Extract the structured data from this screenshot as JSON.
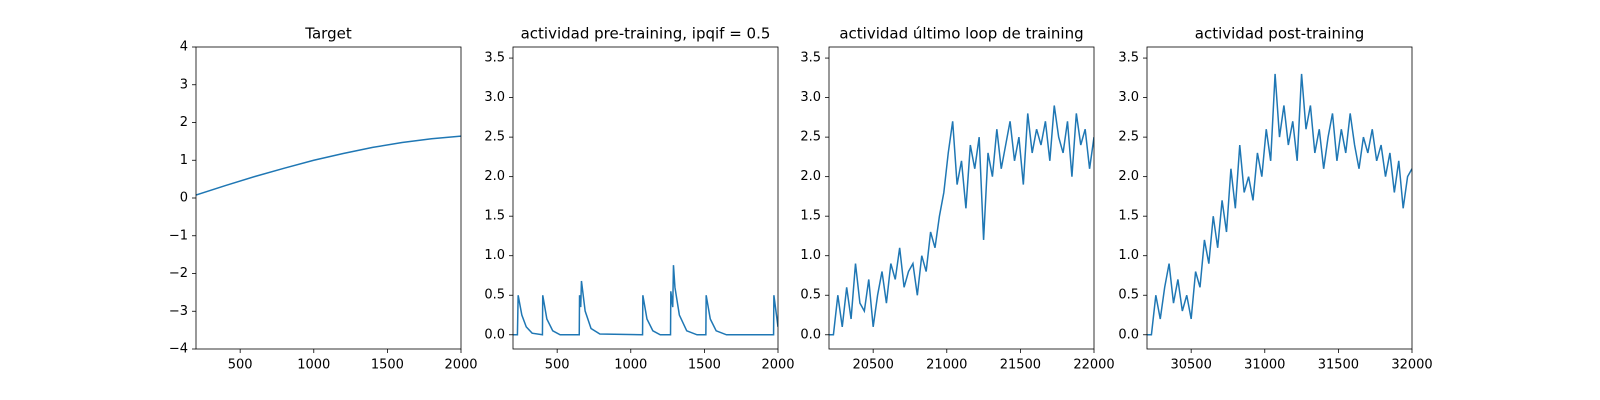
{
  "chart_data": [
    {
      "type": "line",
      "title": "Target",
      "color": "#1f77b4",
      "x": [
        200,
        400,
        600,
        800,
        1000,
        1200,
        1400,
        1600,
        1800,
        2000
      ],
      "values": [
        0.08,
        0.33,
        0.57,
        0.79,
        1.0,
        1.18,
        1.34,
        1.47,
        1.57,
        1.64
      ],
      "xlim": [
        200,
        2000
      ],
      "xticks": [
        500,
        1000,
        1500,
        2000
      ],
      "ylim": [
        -4,
        4
      ],
      "yticks": [
        {
          "value": -4,
          "label": "−4"
        },
        {
          "value": -3,
          "label": "−3"
        },
        {
          "value": -2,
          "label": "−2"
        },
        {
          "value": -1,
          "label": "−1"
        },
        0,
        1,
        2,
        3,
        4
      ]
    },
    {
      "type": "line",
      "title": "actividad pre-training, ipqif = 0.5",
      "color": "#1f77b4",
      "x": [
        200,
        230,
        235,
        260,
        290,
        330,
        400,
        402,
        430,
        470,
        520,
        650,
        652,
        660,
        665,
        690,
        730,
        790,
        1080,
        1082,
        1110,
        1150,
        1200,
        1270,
        1272,
        1285,
        1290,
        1300,
        1330,
        1380,
        1450,
        1510,
        1512,
        1540,
        1580,
        1650,
        1970,
        1972,
        2000
      ],
      "values": [
        0,
        0,
        0.5,
        0.25,
        0.1,
        0.02,
        0,
        0.5,
        0.2,
        0.05,
        0,
        0,
        0.5,
        0.35,
        0.68,
        0.3,
        0.08,
        0.01,
        0,
        0.5,
        0.2,
        0.05,
        0,
        0,
        0.55,
        0.35,
        0.88,
        0.6,
        0.25,
        0.05,
        0,
        0,
        0.5,
        0.2,
        0.05,
        0,
        0,
        0.5,
        0.1
      ],
      "xlim": [
        200,
        2000
      ],
      "xticks": [
        500,
        1000,
        1500,
        2000
      ],
      "ylim": [
        -0.18,
        3.64
      ],
      "yticks": [
        {
          "value": 0,
          "label": "0.0"
        },
        0.5,
        {
          "value": 1,
          "label": "1.0"
        },
        1.5,
        {
          "value": 2,
          "label": "2.0"
        },
        2.5,
        {
          "value": 3,
          "label": "3.0"
        },
        3.5
      ]
    },
    {
      "type": "line",
      "title": "actividad último loop de training",
      "color": "#1f77b4",
      "x": [
        20200,
        20230,
        20260,
        20290,
        20320,
        20350,
        20380,
        20410,
        20440,
        20470,
        20500,
        20530,
        20560,
        20590,
        20620,
        20650,
        20680,
        20710,
        20740,
        20770,
        20800,
        20830,
        20860,
        20890,
        20920,
        20950,
        20980,
        21010,
        21040,
        21070,
        21100,
        21130,
        21160,
        21190,
        21220,
        21250,
        21280,
        21310,
        21340,
        21370,
        21400,
        21430,
        21460,
        21490,
        21520,
        21550,
        21580,
        21610,
        21640,
        21670,
        21700,
        21730,
        21760,
        21790,
        21820,
        21850,
        21880,
        21910,
        21940,
        21970,
        22000
      ],
      "values": [
        0,
        0,
        0.5,
        0.1,
        0.6,
        0.2,
        0.9,
        0.4,
        0.3,
        0.7,
        0.1,
        0.5,
        0.8,
        0.4,
        0.9,
        0.7,
        1.1,
        0.6,
        0.8,
        0.9,
        0.5,
        1.0,
        0.8,
        1.3,
        1.1,
        1.5,
        1.8,
        2.3,
        2.7,
        1.9,
        2.2,
        1.6,
        2.4,
        2.1,
        2.5,
        1.2,
        2.3,
        2.0,
        2.6,
        2.1,
        2.4,
        2.7,
        2.2,
        2.5,
        1.9,
        2.8,
        2.3,
        2.6,
        2.4,
        2.7,
        2.2,
        2.9,
        2.5,
        2.3,
        2.7,
        2.0,
        2.8,
        2.4,
        2.6,
        2.1,
        2.5
      ],
      "xlim": [
        20200,
        22000
      ],
      "xticks": [
        20500,
        21000,
        21500,
        22000
      ],
      "ylim": [
        -0.18,
        3.64
      ],
      "yticks": [
        {
          "value": 0,
          "label": "0.0"
        },
        0.5,
        {
          "value": 1,
          "label": "1.0"
        },
        1.5,
        {
          "value": 2,
          "label": "2.0"
        },
        2.5,
        {
          "value": 3,
          "label": "3.0"
        },
        3.5
      ]
    },
    {
      "type": "line",
      "title": "actividad post-training",
      "color": "#1f77b4",
      "x": [
        30200,
        30230,
        30260,
        30290,
        30320,
        30350,
        30380,
        30410,
        30440,
        30470,
        30500,
        30530,
        30560,
        30590,
        30620,
        30650,
        30680,
        30710,
        30740,
        30770,
        30800,
        30830,
        30860,
        30890,
        30920,
        30950,
        30980,
        31010,
        31040,
        31070,
        31100,
        31130,
        31160,
        31190,
        31220,
        31250,
        31280,
        31310,
        31340,
        31370,
        31400,
        31430,
        31460,
        31490,
        31520,
        31550,
        31580,
        31610,
        31640,
        31670,
        31700,
        31730,
        31760,
        31790,
        31820,
        31850,
        31880,
        31910,
        31940,
        31970,
        32000
      ],
      "values": [
        0,
        0,
        0.5,
        0.2,
        0.6,
        0.9,
        0.4,
        0.7,
        0.3,
        0.5,
        0.2,
        0.8,
        0.6,
        1.2,
        0.9,
        1.5,
        1.1,
        1.7,
        1.3,
        2.1,
        1.6,
        2.4,
        1.8,
        2.0,
        1.7,
        2.3,
        2.0,
        2.6,
        2.2,
        3.3,
        2.5,
        2.9,
        2.4,
        2.7,
        2.2,
        3.3,
        2.6,
        2.9,
        2.3,
        2.6,
        2.1,
        2.5,
        2.8,
        2.2,
        2.6,
        2.3,
        2.8,
        2.4,
        2.1,
        2.5,
        2.3,
        2.6,
        2.2,
        2.4,
        2.0,
        2.3,
        1.8,
        2.2,
        1.6,
        2.0,
        2.1
      ],
      "xlim": [
        30200,
        32000
      ],
      "xticks": [
        30500,
        31000,
        31500,
        32000
      ],
      "ylim": [
        -0.18,
        3.64
      ],
      "yticks": [
        {
          "value": 0,
          "label": "0.0"
        },
        0.5,
        {
          "value": 1,
          "label": "1.0"
        },
        1.5,
        {
          "value": 2,
          "label": "2.0"
        },
        2.5,
        {
          "value": 3,
          "label": "3.0"
        },
        3.5
      ]
    }
  ]
}
